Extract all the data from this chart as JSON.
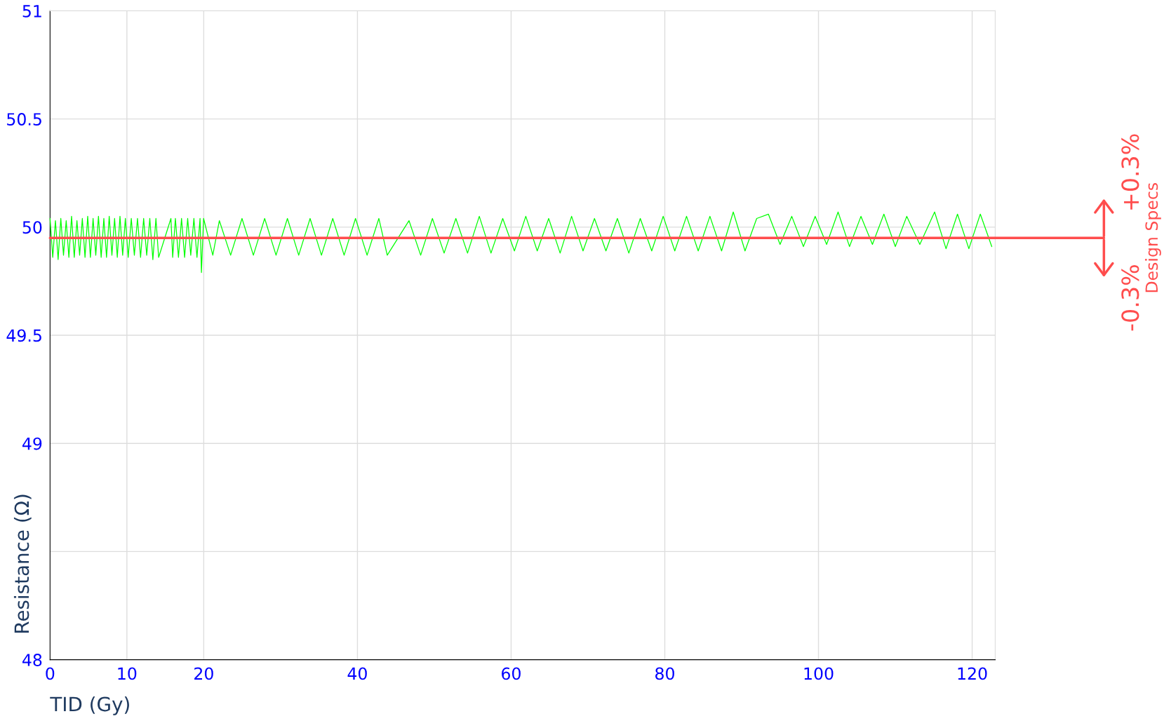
{
  "chart_data": {
    "type": "line",
    "xlabel": "TID (Gy)",
    "ylabel": "Resistance (Ω)",
    "xlim": [
      0,
      123
    ],
    "xticks": [
      0,
      10,
      20,
      40,
      60,
      80,
      100,
      120
    ],
    "ylim": [
      48,
      51
    ],
    "yticks": [
      48,
      {
        "value": 48.5,
        "label": null
      },
      49,
      49.5,
      50,
      50.5,
      51
    ],
    "grid": true,
    "legend": false,
    "marker": "none",
    "line_style": "solid",
    "series": [
      {
        "color": "#00ff00",
        "x": [
          0,
          0.35,
          0.7,
          1.05,
          1.4,
          1.75,
          2.1,
          2.45,
          2.8,
          3.15,
          3.5,
          3.85,
          4.2,
          4.55,
          4.9,
          5.25,
          5.6,
          5.95,
          6.3,
          6.65,
          7.0,
          7.35,
          7.7,
          8.05,
          8.4,
          8.75,
          9.1,
          9.45,
          9.8,
          10.17,
          10.57,
          10.97,
          11.38,
          11.78,
          12.18,
          12.58,
          12.98,
          13.38,
          13.78,
          14.13,
          15.73,
          15.96,
          16.31,
          16.71,
          17.11,
          17.51,
          17.91,
          18.31,
          18.72,
          19.12,
          19.52,
          19.7,
          19.98,
          21.18,
          22.03,
          23.5,
          24.98,
          26.46,
          27.93,
          29.41,
          30.89,
          32.36,
          33.84,
          35.32,
          36.79,
          38.27,
          39.75,
          41.26,
          42.79,
          43.88,
          46.71,
          48.23,
          49.76,
          51.28,
          52.81,
          54.33,
          55.86,
          57.38,
          58.91,
          60.43,
          61.91,
          63.4,
          64.89,
          66.38,
          67.87,
          69.36,
          70.85,
          72.34,
          73.83,
          75.32,
          76.81,
          78.3,
          79.79,
          81.3,
          82.83,
          84.35,
          85.87,
          87.39,
          88.91,
          90.44,
          91.96,
          93.48,
          95.0,
          96.52,
          98.04,
          99.57,
          101.06,
          102.55,
          104.04,
          105.53,
          107.02,
          108.51,
          110.0,
          111.49,
          113.19,
          115.11,
          116.6,
          118.09,
          119.57,
          121.06,
          122.55
        ],
        "values": [
          50.04,
          49.86,
          50.03,
          49.85,
          50.04,
          49.87,
          50.03,
          49.86,
          50.05,
          49.86,
          50.03,
          49.87,
          50.04,
          49.86,
          50.05,
          49.86,
          50.04,
          49.87,
          50.05,
          49.86,
          50.04,
          49.86,
          50.05,
          49.87,
          50.04,
          49.86,
          50.05,
          49.87,
          50.04,
          49.86,
          50.04,
          49.87,
          50.04,
          49.86,
          50.04,
          49.87,
          50.04,
          49.85,
          50.04,
          49.86,
          50.04,
          49.86,
          50.04,
          49.86,
          50.04,
          49.86,
          50.04,
          49.87,
          50.04,
          49.86,
          50.04,
          49.79,
          50.04,
          49.87,
          50.03,
          49.87,
          50.04,
          49.87,
          50.04,
          49.87,
          50.04,
          49.87,
          50.04,
          49.87,
          50.04,
          49.87,
          50.04,
          49.87,
          50.04,
          49.87,
          50.03,
          49.87,
          50.04,
          49.88,
          50.04,
          49.88,
          50.05,
          49.88,
          50.04,
          49.89,
          50.05,
          49.89,
          50.04,
          49.88,
          50.05,
          49.89,
          50.04,
          49.89,
          50.04,
          49.88,
          50.04,
          49.89,
          50.05,
          49.89,
          50.05,
          49.89,
          50.05,
          49.89,
          50.07,
          49.89,
          50.04,
          50.06,
          49.92,
          50.05,
          49.91,
          50.05,
          49.92,
          50.07,
          49.91,
          50.05,
          49.92,
          50.06,
          49.91,
          50.05,
          49.92,
          50.07,
          49.9,
          50.06,
          49.9,
          50.06,
          49.91
        ]
      }
    ],
    "ref_lines": [
      {
        "axis": "y",
        "value": 49.95,
        "color": "#ff4d4d"
      }
    ],
    "annotations": [
      "+0.3%",
      "-0.3%",
      "Design Specs"
    ]
  }
}
